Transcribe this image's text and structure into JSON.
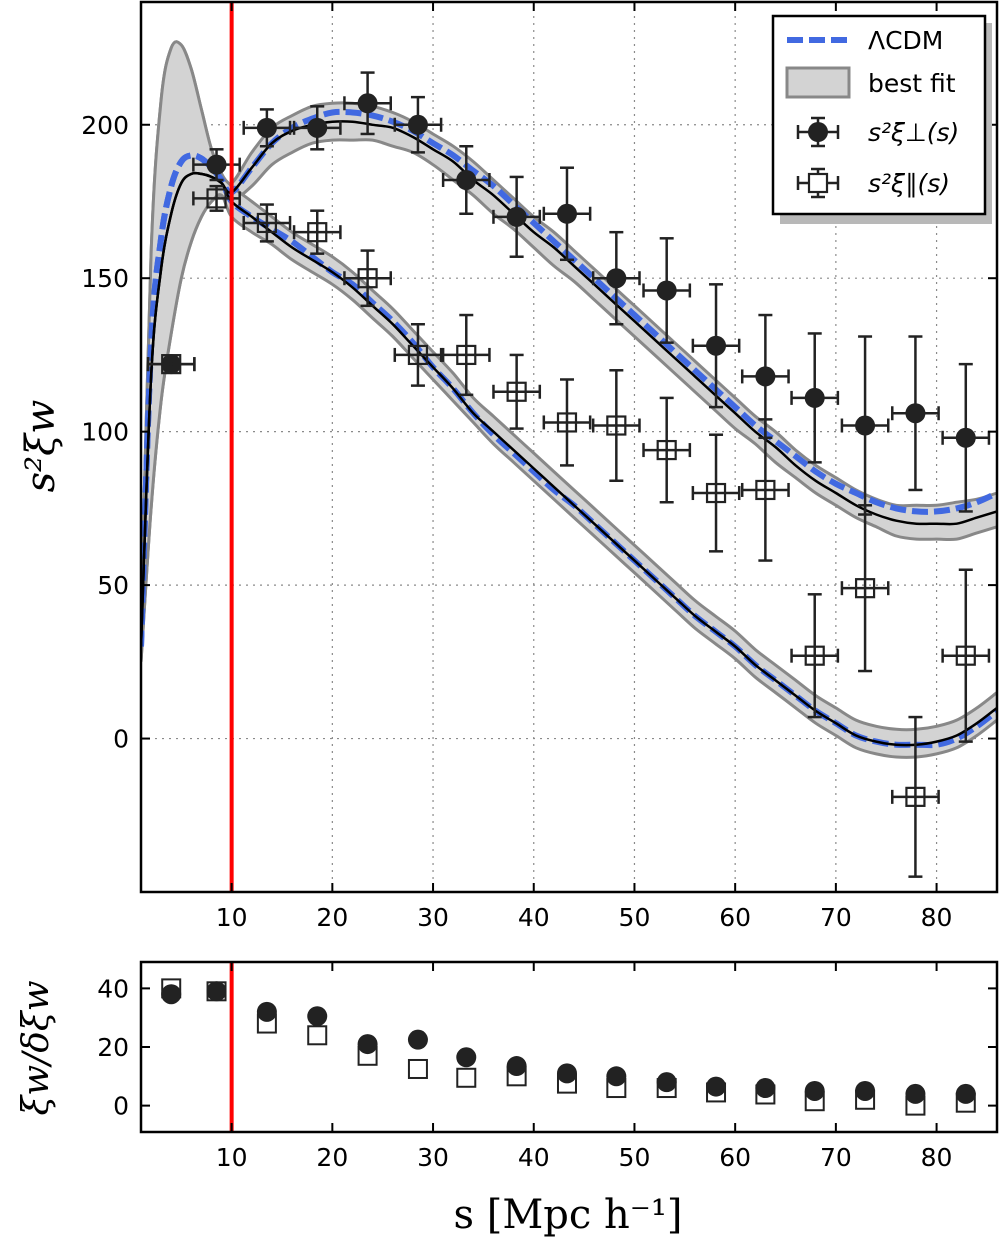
{
  "chart_data": [
    {
      "type": "line",
      "xlim": [
        1,
        86
      ],
      "ylim": [
        -50,
        240
      ],
      "grid": true,
      "legend_placement": "top-right",
      "ylabel": "s²ξw",
      "xticks": [
        10,
        20,
        30,
        40,
        50,
        60,
        70,
        80
      ],
      "yticks": [
        0,
        50,
        100,
        150,
        200
      ],
      "vline_x": 10,
      "legend": {
        "lcdm": "ΛCDM",
        "bestfit": "best fit",
        "perp": "s²ξ⊥(s)",
        "par": "s²ξ∥(s)"
      },
      "model_x": [
        1,
        2,
        3,
        4,
        5,
        6,
        7,
        8,
        9,
        10,
        12,
        14,
        16,
        18,
        20,
        22,
        24,
        26,
        28,
        30,
        32,
        34,
        36,
        38,
        40,
        42,
        44,
        46,
        48,
        50,
        52,
        54,
        56,
        58,
        60,
        62,
        64,
        66,
        68,
        70,
        72,
        74,
        76,
        78,
        80,
        82,
        84,
        86
      ],
      "series": [
        {
          "name": "ΛCDM",
          "style": "dashed",
          "color": "#4169e1",
          "component": "perp",
          "values": [
            30,
            128,
            163,
            180,
            188,
            190,
            189,
            186,
            182,
            178,
            186,
            194,
            199,
            202,
            204,
            204,
            203,
            201,
            198,
            194,
            190,
            185,
            180,
            174,
            168,
            162,
            156,
            150,
            144,
            138,
            132,
            126,
            120,
            114,
            108,
            102,
            97,
            92,
            87,
            83,
            80,
            77,
            75,
            74,
            74,
            75,
            77,
            80
          ]
        },
        {
          "name": "ΛCDM",
          "style": "dashed",
          "color": "#4169e1",
          "component": "par",
          "values": [
            30,
            128,
            163,
            180,
            188,
            190,
            189,
            186,
            182,
            175,
            170,
            166,
            162,
            157,
            152,
            148,
            142,
            136,
            129,
            121,
            114,
            106,
            99,
            93,
            87,
            81,
            76,
            70,
            64,
            58,
            52,
            46,
            40,
            35,
            30,
            24,
            19,
            14,
            9,
            5,
            1,
            -1,
            -2,
            -2,
            -2,
            0,
            4,
            9
          ]
        },
        {
          "name": "best fit",
          "color": "#000000",
          "band_color": "#d3d3d3",
          "component": "perp",
          "values": [
            30,
            118,
            153,
            171,
            181,
            184,
            184,
            183,
            181,
            178,
            186,
            194,
            198,
            200,
            201,
            201,
            200,
            199,
            196,
            192,
            188,
            182,
            177,
            171,
            165,
            160,
            154,
            148,
            142,
            136,
            130,
            124,
            118,
            112,
            106,
            100,
            95,
            89,
            84,
            80,
            76,
            73,
            71,
            70,
            70,
            70,
            72,
            74
          ],
          "band_lower": [
            25,
            75,
            110,
            132,
            150,
            162,
            170,
            175,
            177,
            175,
            180,
            187,
            191,
            194,
            195,
            195,
            195,
            193,
            191,
            187,
            182,
            177,
            171,
            166,
            160,
            154,
            149,
            143,
            137,
            131,
            125,
            119,
            113,
            107,
            101,
            96,
            90,
            85,
            80,
            76,
            72,
            69,
            66,
            65,
            65,
            65,
            67,
            69
          ],
          "band_upper": [
            35,
            158,
            208,
            225,
            226,
            218,
            205,
            192,
            184,
            181,
            191,
            199,
            203,
            206,
            207,
            207,
            206,
            204,
            201,
            197,
            193,
            188,
            182,
            176,
            170,
            165,
            159,
            153,
            147,
            141,
            135,
            129,
            123,
            117,
            111,
            105,
            100,
            94,
            89,
            85,
            81,
            78,
            76,
            76,
            76,
            77,
            78,
            80
          ]
        },
        {
          "name": "best fit",
          "color": "#000000",
          "band_color": "#d3d3d3",
          "component": "par",
          "values": [
            30,
            118,
            153,
            171,
            181,
            184,
            184,
            183,
            181,
            175,
            170,
            165,
            160,
            156,
            152,
            147,
            141,
            135,
            128,
            121,
            114,
            106,
            100,
            94,
            88,
            82,
            76,
            70,
            64,
            58,
            52,
            46,
            40,
            35,
            30,
            24,
            19,
            14,
            9,
            5,
            1,
            -1,
            -2,
            -2,
            -1,
            1,
            5,
            10
          ],
          "band_lower": [
            25,
            75,
            110,
            132,
            150,
            162,
            170,
            175,
            177,
            170,
            165,
            161,
            156,
            152,
            148,
            143,
            137,
            131,
            124,
            117,
            110,
            103,
            96,
            90,
            84,
            78,
            72,
            66,
            60,
            54,
            48,
            42,
            36,
            31,
            26,
            20,
            15,
            10,
            5,
            1,
            -3,
            -5,
            -6,
            -6,
            -5,
            -3,
            1,
            6
          ],
          "band_upper": [
            35,
            158,
            208,
            225,
            226,
            218,
            205,
            192,
            184,
            180,
            175,
            170,
            165,
            161,
            157,
            152,
            146,
            140,
            133,
            126,
            119,
            111,
            105,
            99,
            93,
            87,
            81,
            75,
            69,
            63,
            57,
            51,
            45,
            40,
            35,
            29,
            24,
            19,
            14,
            10,
            6,
            4,
            3,
            3,
            4,
            6,
            10,
            15
          ]
        },
        {
          "name": "s²ξ⊥(s)",
          "type": "scatter",
          "marker": "filled-circle",
          "points": [
            {
              "x": 4,
              "y": 122,
              "err": 2
            },
            {
              "x": 8.5,
              "y": 187,
              "err": 5
            },
            {
              "x": 13.5,
              "y": 199,
              "err": 6
            },
            {
              "x": 18.5,
              "y": 199,
              "err": 7
            },
            {
              "x": 23.5,
              "y": 207,
              "err": 10
            },
            {
              "x": 28.5,
              "y": 200,
              "err": 9
            },
            {
              "x": 33.3,
              "y": 182,
              "err": 11
            },
            {
              "x": 38.3,
              "y": 170,
              "err": 13
            },
            {
              "x": 43.3,
              "y": 171,
              "err": 15
            },
            {
              "x": 48.2,
              "y": 150,
              "err": 15
            },
            {
              "x": 53.2,
              "y": 146,
              "err": 17
            },
            {
              "x": 58.1,
              "y": 128,
              "err": 20
            },
            {
              "x": 63.0,
              "y": 118,
              "err": 20
            },
            {
              "x": 67.9,
              "y": 111,
              "err": 21
            },
            {
              "x": 72.9,
              "y": 102,
              "err": 29
            },
            {
              "x": 77.9,
              "y": 106,
              "err": 25
            },
            {
              "x": 82.9,
              "y": 98,
              "err": 24
            }
          ]
        },
        {
          "name": "s²ξ∥(s)",
          "type": "scatter",
          "marker": "open-square",
          "points": [
            {
              "x": 4,
              "y": 122,
              "err": 2
            },
            {
              "x": 8.5,
              "y": 176,
              "err": 4
            },
            {
              "x": 13.5,
              "y": 168,
              "err": 6
            },
            {
              "x": 18.5,
              "y": 165,
              "err": 7
            },
            {
              "x": 23.5,
              "y": 150,
              "err": 9
            },
            {
              "x": 28.5,
              "y": 125,
              "err": 10
            },
            {
              "x": 33.3,
              "y": 125,
              "err": 13
            },
            {
              "x": 38.3,
              "y": 113,
              "err": 12
            },
            {
              "x": 43.3,
              "y": 103,
              "err": 14
            },
            {
              "x": 48.2,
              "y": 102,
              "err": 18
            },
            {
              "x": 53.2,
              "y": 94,
              "err": 17
            },
            {
              "x": 58.1,
              "y": 80,
              "err": 19
            },
            {
              "x": 63.0,
              "y": 81,
              "err": 23
            },
            {
              "x": 67.9,
              "y": 27,
              "err": 20
            },
            {
              "x": 72.9,
              "y": 49,
              "err": 27
            },
            {
              "x": 77.9,
              "y": -19,
              "err": 26
            },
            {
              "x": 82.9,
              "y": 27,
              "err": 28
            }
          ]
        }
      ]
    },
    {
      "type": "scatter",
      "xlim": [
        1,
        86
      ],
      "ylim": [
        -9,
        49
      ],
      "xlabel": "s [Mpc h⁻¹]",
      "ylabel": "ξw/δξw",
      "xticks": [
        10,
        20,
        30,
        40,
        50,
        60,
        70,
        80
      ],
      "yticks": [
        0,
        20,
        40
      ],
      "vline_x": 10,
      "x": [
        4,
        8.5,
        13.5,
        18.5,
        23.5,
        28.5,
        33.3,
        38.3,
        43.3,
        48.2,
        53.2,
        58.1,
        63.0,
        67.9,
        72.9,
        77.9,
        82.9
      ],
      "series": [
        {
          "marker": "filled-circle",
          "values": [
            38,
            39,
            32,
            30.5,
            21,
            22.5,
            16.5,
            13.5,
            11,
            10,
            8,
            6.5,
            6,
            5,
            5,
            4,
            4
          ]
        },
        {
          "marker": "open-square",
          "values": [
            40,
            39,
            28,
            24,
            17,
            12.5,
            9.5,
            10,
            7.5,
            6,
            6,
            4.5,
            3.8,
            1.5,
            2,
            0,
            1
          ]
        }
      ]
    }
  ]
}
